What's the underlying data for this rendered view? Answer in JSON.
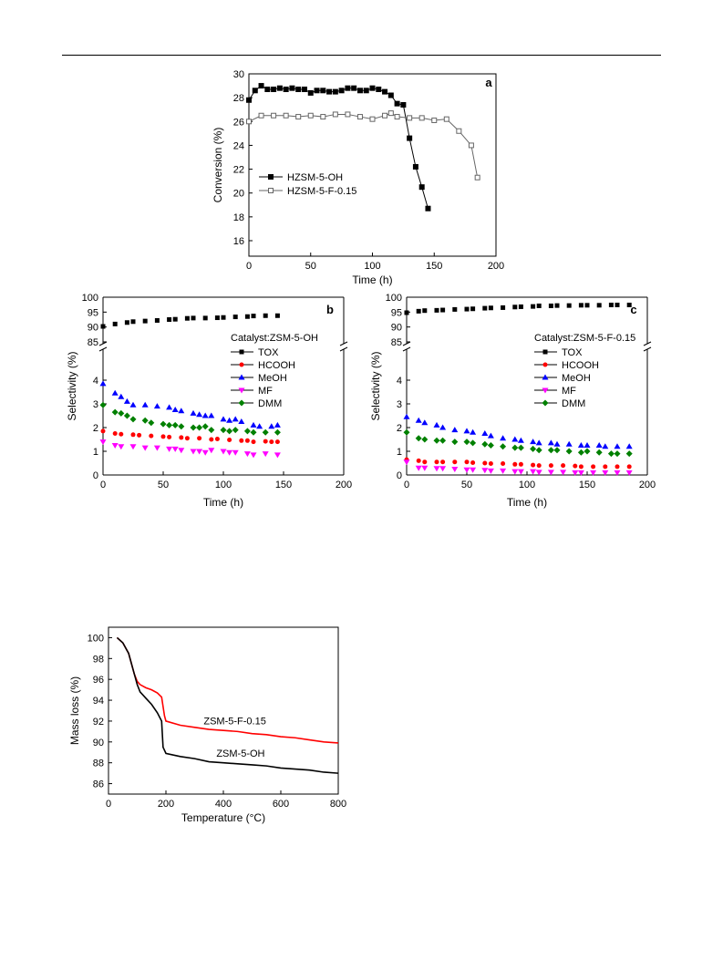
{
  "chart_data": [
    {
      "id": "a",
      "type": "line",
      "panel_label": "a",
      "xlabel": "Time (h)",
      "ylabel": "Conversion (%)",
      "xlim": [
        0,
        200
      ],
      "ylim": [
        14.7,
        30
      ],
      "xticks": [
        0,
        50,
        100,
        150,
        200
      ],
      "yticks": [
        16,
        18,
        20,
        22,
        24,
        26,
        28,
        30
      ],
      "legend_position": "center-left",
      "series": [
        {
          "name": "HZSM-5-OH",
          "marker": "square-filled",
          "color": "#000000",
          "x": [
            0,
            5,
            10,
            15,
            20,
            25,
            30,
            35,
            40,
            45,
            50,
            55,
            60,
            65,
            70,
            75,
            80,
            85,
            90,
            95,
            100,
            105,
            110,
            115,
            120,
            125,
            130,
            135,
            140,
            145
          ],
          "y": [
            27.8,
            28.6,
            29.0,
            28.7,
            28.7,
            28.8,
            28.7,
            28.8,
            28.7,
            28.7,
            28.4,
            28.6,
            28.6,
            28.5,
            28.5,
            28.6,
            28.8,
            28.8,
            28.6,
            28.6,
            28.8,
            28.7,
            28.5,
            28.2,
            27.5,
            27.4,
            24.6,
            22.2,
            20.5,
            18.7
          ]
        },
        {
          "name": "HZSM-5-F-0.15",
          "marker": "square-open",
          "color": "#666666",
          "x": [
            0,
            10,
            20,
            30,
            40,
            50,
            60,
            70,
            80,
            90,
            100,
            110,
            115,
            120,
            130,
            140,
            150,
            160,
            170,
            180,
            185
          ],
          "y": [
            26.0,
            26.5,
            26.5,
            26.5,
            26.4,
            26.5,
            26.4,
            26.6,
            26.6,
            26.4,
            26.2,
            26.5,
            26.7,
            26.4,
            26.3,
            26.3,
            26.1,
            26.2,
            25.2,
            24.0,
            21.3
          ]
        }
      ]
    },
    {
      "id": "b",
      "type": "scatter",
      "panel_label": "b",
      "annotation": "Catalyst:ZSM-5-OH",
      "xlabel": "Time (h)",
      "ylabel": "Selectivity (%)",
      "xlim": [
        0,
        200
      ],
      "ylim_lower": [
        0,
        5
      ],
      "ylim_upper": [
        85,
        100
      ],
      "axis_break": true,
      "xticks": [
        0,
        50,
        100,
        150,
        200
      ],
      "yticks_lower": [
        0,
        1,
        2,
        3,
        4
      ],
      "yticks_upper": [
        85,
        90,
        95,
        100
      ],
      "legend_position": "right",
      "series": [
        {
          "name": "TOX",
          "marker": "square",
          "color": "#000000",
          "x": [
            0,
            10,
            20,
            25,
            35,
            45,
            55,
            60,
            70,
            75,
            85,
            95,
            100,
            110,
            120,
            125,
            135,
            145
          ],
          "y": [
            90.2,
            91.0,
            91.5,
            91.8,
            92.0,
            92.2,
            92.5,
            92.6,
            92.9,
            93.0,
            93.0,
            93.1,
            93.2,
            93.4,
            93.5,
            93.7,
            93.8,
            93.8
          ]
        },
        {
          "name": "HCOOH",
          "marker": "circle",
          "color": "#ff0000",
          "x": [
            0,
            10,
            15,
            25,
            30,
            40,
            50,
            55,
            65,
            70,
            80,
            90,
            95,
            105,
            115,
            120,
            125,
            135,
            140,
            145
          ],
          "y": [
            1.85,
            1.75,
            1.72,
            1.7,
            1.68,
            1.65,
            1.62,
            1.6,
            1.58,
            1.55,
            1.55,
            1.5,
            1.52,
            1.48,
            1.45,
            1.45,
            1.4,
            1.42,
            1.4,
            1.4
          ]
        },
        {
          "name": "MeOH",
          "marker": "triangle-up",
          "color": "#0000ff",
          "x": [
            0,
            10,
            15,
            20,
            25,
            35,
            45,
            55,
            60,
            65,
            75,
            80,
            85,
            90,
            100,
            105,
            110,
            115,
            125,
            130,
            140,
            145
          ],
          "y": [
            3.85,
            3.45,
            3.3,
            3.1,
            2.95,
            2.95,
            2.9,
            2.85,
            2.75,
            2.7,
            2.6,
            2.55,
            2.5,
            2.5,
            2.35,
            2.3,
            2.35,
            2.25,
            2.1,
            2.05,
            2.05,
            2.1
          ]
        },
        {
          "name": "MF",
          "marker": "triangle-down",
          "color": "#ff00ff",
          "x": [
            0,
            10,
            15,
            25,
            35,
            45,
            55,
            60,
            65,
            75,
            80,
            85,
            90,
            100,
            105,
            110,
            120,
            125,
            135,
            145
          ],
          "y": [
            1.4,
            1.25,
            1.2,
            1.2,
            1.15,
            1.15,
            1.1,
            1.1,
            1.05,
            1.0,
            1.0,
            0.95,
            1.05,
            1.0,
            0.95,
            0.95,
            0.9,
            0.85,
            0.9,
            0.85
          ]
        },
        {
          "name": "DMM",
          "marker": "diamond",
          "color": "#008000",
          "x": [
            0,
            10,
            15,
            20,
            25,
            35,
            40,
            50,
            55,
            60,
            65,
            75,
            80,
            85,
            90,
            100,
            105,
            110,
            120,
            125,
            135,
            145
          ],
          "y": [
            2.95,
            2.65,
            2.6,
            2.5,
            2.35,
            2.3,
            2.2,
            2.15,
            2.1,
            2.1,
            2.05,
            2.0,
            2.0,
            2.05,
            1.9,
            1.9,
            1.85,
            1.9,
            1.85,
            1.8,
            1.8,
            1.8
          ]
        }
      ]
    },
    {
      "id": "c",
      "type": "scatter",
      "panel_label": "c",
      "annotation": "Catalyst:ZSM-5-F-0.15",
      "xlabel": "Time (h)",
      "ylabel": "Selectivity (%)",
      "xlim": [
        0,
        200
      ],
      "ylim_lower": [
        0,
        5
      ],
      "ylim_upper": [
        85,
        100
      ],
      "axis_break": true,
      "xticks": [
        0,
        50,
        100,
        150,
        200
      ],
      "yticks_lower": [
        0,
        1,
        2,
        3,
        4
      ],
      "yticks_upper": [
        85,
        90,
        95,
        100
      ],
      "legend_position": "right",
      "series": [
        {
          "name": "TOX",
          "marker": "square",
          "color": "#000000",
          "x": [
            0,
            10,
            15,
            25,
            30,
            40,
            50,
            55,
            65,
            70,
            80,
            90,
            95,
            105,
            110,
            120,
            125,
            135,
            145,
            150,
            160,
            170,
            175,
            185
          ],
          "y": [
            94.8,
            95.3,
            95.5,
            95.6,
            95.7,
            95.9,
            96.0,
            96.1,
            96.3,
            96.4,
            96.5,
            96.7,
            96.8,
            96.9,
            97.1,
            97.1,
            97.2,
            97.2,
            97.3,
            97.3,
            97.3,
            97.4,
            97.4,
            97.4
          ]
        },
        {
          "name": "HCOOH",
          "marker": "circle",
          "color": "#ff0000",
          "x": [
            0,
            10,
            15,
            25,
            30,
            40,
            50,
            55,
            65,
            70,
            80,
            90,
            95,
            105,
            110,
            120,
            130,
            140,
            145,
            155,
            165,
            175,
            185
          ],
          "y": [
            0.65,
            0.6,
            0.55,
            0.55,
            0.55,
            0.55,
            0.55,
            0.52,
            0.5,
            0.48,
            0.48,
            0.45,
            0.45,
            0.42,
            0.4,
            0.4,
            0.4,
            0.38,
            0.35,
            0.35,
            0.35,
            0.35,
            0.35
          ]
        },
        {
          "name": "MeOH",
          "marker": "triangle-up",
          "color": "#0000ff",
          "x": [
            0,
            10,
            15,
            25,
            30,
            40,
            50,
            55,
            65,
            70,
            80,
            90,
            95,
            105,
            110,
            120,
            125,
            135,
            145,
            150,
            160,
            165,
            175,
            185
          ],
          "y": [
            2.45,
            2.3,
            2.2,
            2.1,
            2.0,
            1.9,
            1.85,
            1.8,
            1.75,
            1.65,
            1.55,
            1.5,
            1.45,
            1.4,
            1.35,
            1.35,
            1.3,
            1.3,
            1.25,
            1.25,
            1.25,
            1.2,
            1.2,
            1.2
          ]
        },
        {
          "name": "MF",
          "marker": "triangle-down",
          "color": "#ff00ff",
          "x": [
            0,
            10,
            15,
            25,
            30,
            40,
            50,
            55,
            65,
            70,
            80,
            90,
            95,
            105,
            110,
            120,
            130,
            140,
            145,
            155,
            165,
            175,
            185
          ],
          "y": [
            0.55,
            0.3,
            0.3,
            0.28,
            0.28,
            0.25,
            0.22,
            0.22,
            0.2,
            0.18,
            0.18,
            0.15,
            0.15,
            0.15,
            0.12,
            0.12,
            0.12,
            0.1,
            0.1,
            0.1,
            0.1,
            0.1,
            0.1
          ]
        },
        {
          "name": "DMM",
          "marker": "diamond",
          "color": "#008000",
          "x": [
            0,
            10,
            15,
            25,
            30,
            40,
            50,
            55,
            65,
            70,
            80,
            90,
            95,
            105,
            110,
            120,
            125,
            135,
            145,
            150,
            160,
            170,
            175,
            185
          ],
          "y": [
            1.8,
            1.55,
            1.5,
            1.45,
            1.45,
            1.4,
            1.4,
            1.35,
            1.3,
            1.25,
            1.2,
            1.15,
            1.15,
            1.1,
            1.05,
            1.05,
            1.05,
            1.0,
            0.95,
            1.0,
            0.95,
            0.9,
            0.9,
            0.9
          ]
        }
      ]
    },
    {
      "id": "d",
      "type": "line",
      "xlabel": "Temperature (°C)",
      "ylabel": "Mass loss (%)",
      "xlim": [
        0,
        800
      ],
      "ylim": [
        85,
        101
      ],
      "xticks": [
        0,
        200,
        400,
        600,
        800
      ],
      "yticks": [
        86,
        88,
        90,
        92,
        94,
        96,
        98,
        100
      ],
      "series": [
        {
          "name": "ZSM-5-F-0.15",
          "color": "#ff0000",
          "label_at": [
            440,
            91.7
          ],
          "x": [
            30,
            50,
            70,
            90,
            100,
            110,
            130,
            150,
            170,
            185,
            195,
            200,
            250,
            300,
            350,
            400,
            450,
            500,
            550,
            600,
            650,
            700,
            750,
            800
          ],
          "y": [
            100,
            99.5,
            98.5,
            96.5,
            95.8,
            95.5,
            95.2,
            95.0,
            94.7,
            94.3,
            92.5,
            92.0,
            91.6,
            91.4,
            91.2,
            91.1,
            91.0,
            90.8,
            90.7,
            90.5,
            90.4,
            90.2,
            90.0,
            89.9
          ]
        },
        {
          "name": "ZSM-5-OH",
          "color": "#000000",
          "label_at": [
            460,
            88.6
          ],
          "x": [
            30,
            50,
            70,
            90,
            100,
            110,
            130,
            150,
            170,
            185,
            190,
            200,
            250,
            300,
            350,
            400,
            450,
            500,
            550,
            600,
            650,
            700,
            750,
            800
          ],
          "y": [
            100,
            99.5,
            98.5,
            96.5,
            95.5,
            94.8,
            94.2,
            93.6,
            92.8,
            92.0,
            89.5,
            88.9,
            88.6,
            88.4,
            88.1,
            88.0,
            87.9,
            87.8,
            87.7,
            87.5,
            87.4,
            87.3,
            87.1,
            87.0
          ]
        }
      ]
    }
  ]
}
